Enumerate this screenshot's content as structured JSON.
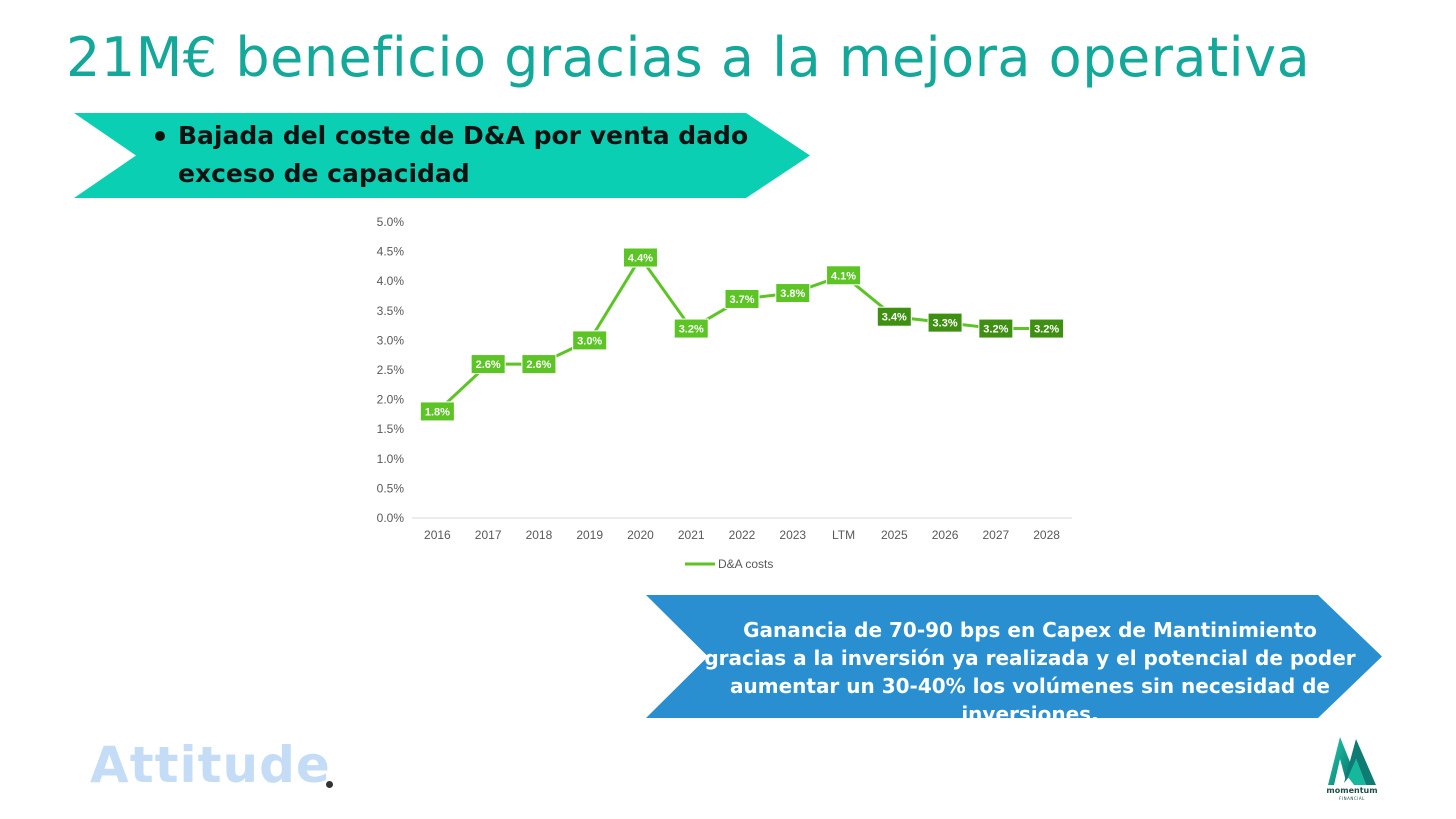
{
  "slide": {
    "title": "21M€ beneficio gracias a la mejora operativa",
    "top_banner": {
      "text": "Bajada del coste de D&A por venta dado exceso de capacidad",
      "color": "#0acfb3"
    },
    "bottom_banner": {
      "text": "Ganancia de 70-90 bps en Capex de Mantinimiento gracias a la inversión ya realizada y el potencial de poder aumentar un 30-40% los volúmenes sin necesidad de inversiones.",
      "color": "#2a8fd0"
    },
    "brand_left": "Attitude",
    "logo": {
      "name": "momentum",
      "sub": "FINANCIAL",
      "icon": "momentum-m-logo-icon"
    }
  },
  "chart_data": {
    "type": "line",
    "categories": [
      "2016",
      "2017",
      "2018",
      "2019",
      "2020",
      "2021",
      "2022",
      "2023",
      "LTM",
      "2025",
      "2026",
      "2027",
      "2028"
    ],
    "series": [
      {
        "name": "D&A costs",
        "values": [
          1.8,
          2.6,
          2.6,
          3.0,
          4.4,
          3.2,
          3.7,
          3.8,
          4.1,
          3.4,
          3.3,
          3.2,
          3.2
        ],
        "labels": [
          "1.8%",
          "2.6%",
          "2.6%",
          "3.0%",
          "4.4%",
          "3.2%",
          "3.7%",
          "3.8%",
          "4.1%",
          "3.4%",
          "3.3%",
          "3.2%",
          "3.2%"
        ],
        "color": "#5cc424",
        "projection_color": "#3e8f12",
        "projection_from_index": 9
      }
    ],
    "y_ticks": [
      "0.0%",
      "0.5%",
      "1.0%",
      "1.5%",
      "2.0%",
      "2.5%",
      "3.0%",
      "3.5%",
      "4.0%",
      "4.5%",
      "5.0%"
    ],
    "ylim": [
      0,
      5
    ],
    "legend_position": "bottom",
    "grid": false
  }
}
